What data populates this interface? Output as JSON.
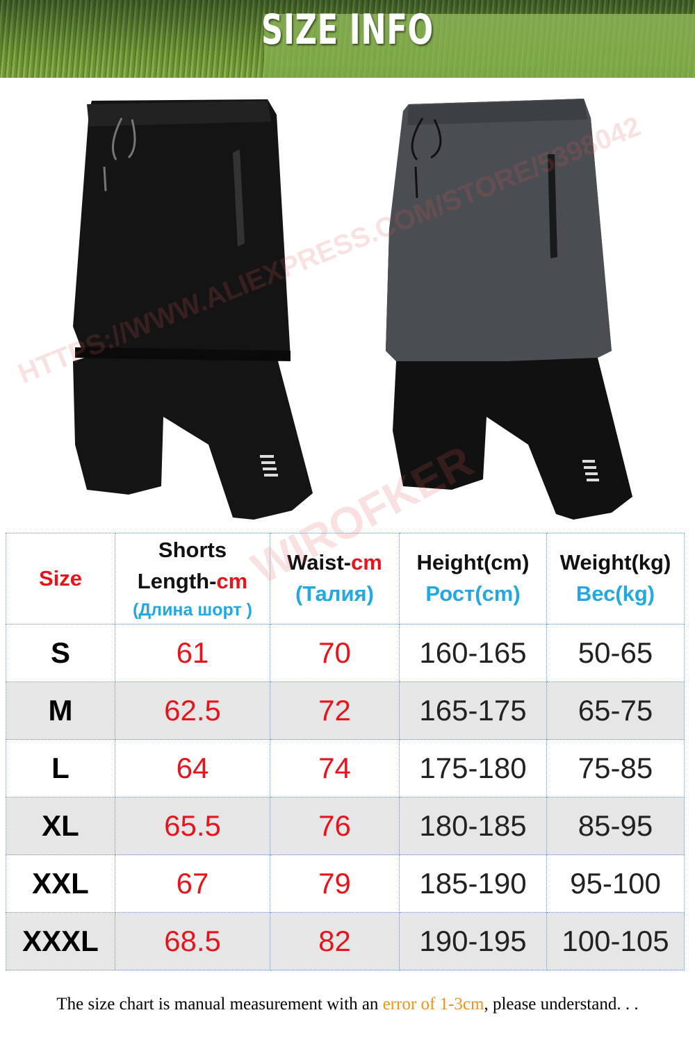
{
  "banner": {
    "title": "SIZE INFO"
  },
  "watermarks": [
    "HTTPS://WWW.ALIEXPRESS.COM/STORE/5398042",
    "WIROFKER"
  ],
  "colors": {
    "red": "#e8141c",
    "blue": "#22a8e2",
    "orange": "#f39214",
    "alt_row": "#e6e6e6"
  },
  "table": {
    "headers": [
      {
        "main": "Size"
      },
      {
        "main": "Shorts",
        "main2": "Length-",
        "unit": "cm",
        "ru": "(Длина шорт )"
      },
      {
        "main": "Waist-",
        "unit": "cm",
        "ru": "(Талия)"
      },
      {
        "main": "Height(cm)",
        "ru": "Рост(cm)"
      },
      {
        "main": "Weight(kg)",
        "ru": "Вес(kg)"
      }
    ],
    "rows": [
      [
        "S",
        "61",
        "70",
        "160-165",
        "50-65"
      ],
      [
        "M",
        "62.5",
        "72",
        "165-175",
        "65-75"
      ],
      [
        "L",
        "64",
        "74",
        "175-180",
        "75-85"
      ],
      [
        "XL",
        "65.5",
        "76",
        "180-185",
        "85-95"
      ],
      [
        "XXL",
        "67",
        "79",
        "185-190",
        "95-100"
      ],
      [
        "XXXL",
        "68.5",
        "82",
        "190-195",
        "100-105"
      ]
    ]
  },
  "note": {
    "before": "The size chart is manual measurement with an ",
    "highlight": "error of 1-3cm",
    "after": ", please understand. . ."
  }
}
